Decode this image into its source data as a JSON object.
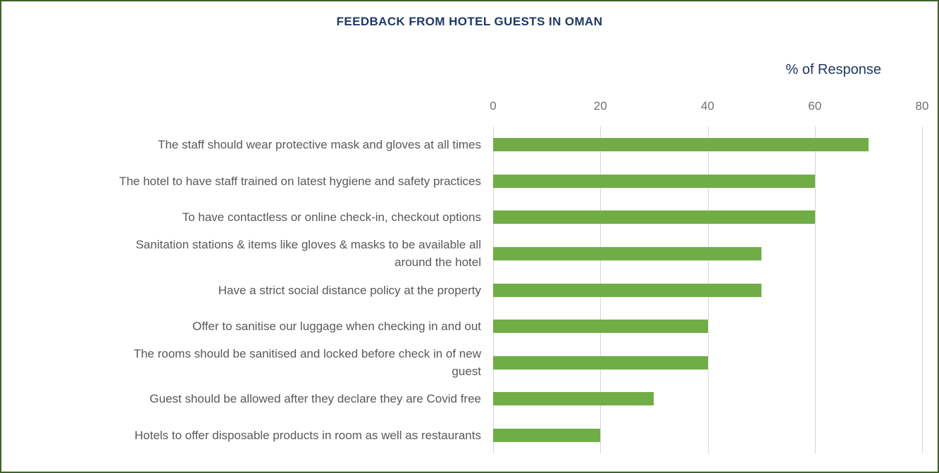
{
  "window": {
    "border_color": "#3f6228",
    "background": "#ffffff"
  },
  "styles": {
    "title_color": "#1F3864",
    "axis_title_color": "#1F3864",
    "tick_label_color": "#6e6e6e",
    "category_label_color": "#595959",
    "gridline_color": "#d6d6d6",
    "bar_color": "#70AD47"
  },
  "chart_data": {
    "type": "bar",
    "orientation": "horizontal",
    "title": "FEEDBACK FROM HOTEL GUESTS IN OMAN",
    "xlabel": "% of Response",
    "xlim": [
      0,
      80
    ],
    "xticks": [
      0,
      20,
      40,
      60,
      80
    ],
    "grid": "vertical-major",
    "legend": false,
    "categories": [
      "The staff should wear protective mask and gloves at all times",
      "The hotel to have staff trained on latest hygiene and safety practices",
      "To have contactless or online check-in, checkout options",
      "Sanitation stations & items like gloves & masks to be available all\naround the hotel",
      "Have a strict social distance policy at the property",
      "Offer to sanitise our luggage when checking in and out",
      "The rooms should be sanitised and locked before check in of new\nguest",
      "Guest should be allowed after they declare they are Covid free",
      "Hotels to offer disposable products in room as well as restaurants"
    ],
    "values": [
      70,
      60,
      60,
      50,
      50,
      40,
      40,
      30,
      20
    ]
  }
}
